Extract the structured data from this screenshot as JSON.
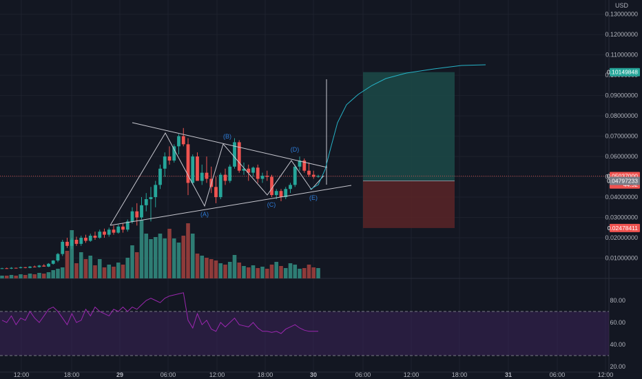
{
  "currency": "USD",
  "colors": {
    "background": "#131722",
    "up": "#26a69a",
    "down": "#ef5350",
    "vol_up": "#2e7d74",
    "vol_down": "#8e3b3a",
    "rsi_line": "#9c27b0",
    "rsi_band": "#3b2357",
    "target_zone": "#1c4a48",
    "stop_zone": "#5a2527",
    "projection": "#26b4c8",
    "pattern_lines": "#c9c9d1",
    "wave_labels": "#2e7bd6",
    "grid": "#1e222d"
  },
  "price_axis": {
    "ticks": [
      "0.13000000",
      "0.12000000",
      "0.11000000",
      "0.10000000",
      "0.09000000",
      "0.08000000",
      "0.07000000",
      "0.06000000",
      "0.05000000",
      "0.04000000",
      "0.03000000",
      "0.02000000",
      "0.01000000"
    ],
    "tags": [
      {
        "text": "0.10149848",
        "value": 0.10149848,
        "color": "#26a69a"
      },
      {
        "text": "0.05037000",
        "value": 0.05037,
        "color": "#ef5350"
      },
      {
        "text": "44:52",
        "value": 0.0462,
        "color": "#ef5350"
      },
      {
        "text": "0.04797233",
        "value": 0.04797233,
        "color": "#787b86"
      },
      {
        "text": "0.02478411",
        "value": 0.02478411,
        "color": "#ef5350"
      }
    ]
  },
  "rsi_axis": {
    "ticks": [
      "80.00",
      "60.00",
      "40.00",
      "20.00"
    ]
  },
  "time_axis": {
    "ticks": [
      "12:00",
      "18:00",
      "29",
      "06:00",
      "12:00",
      "18:00",
      "30",
      "06:00",
      "12:00",
      "18:00",
      "31",
      "06:00",
      "12:00"
    ]
  },
  "wave_labels": [
    "(A)",
    "(B)",
    "(C)",
    "(D)",
    "(E)"
  ],
  "chart_data": {
    "type": "candlestick",
    "unit": "USD",
    "ylim": [
      0.0,
      0.137
    ],
    "candles": [
      [
        0.0049,
        0.0052,
        0.0046,
        0.005
      ],
      [
        0.005,
        0.0053,
        0.0047,
        0.0048
      ],
      [
        0.0048,
        0.0055,
        0.0046,
        0.0052
      ],
      [
        0.0052,
        0.0053,
        0.0049,
        0.0051
      ],
      [
        0.0051,
        0.0058,
        0.0049,
        0.0055
      ],
      [
        0.0055,
        0.0056,
        0.005,
        0.0052
      ],
      [
        0.0052,
        0.006,
        0.005,
        0.0058
      ],
      [
        0.0058,
        0.0063,
        0.0054,
        0.0056
      ],
      [
        0.0056,
        0.0066,
        0.0053,
        0.0063
      ],
      [
        0.0063,
        0.007,
        0.006,
        0.0058
      ],
      [
        0.0058,
        0.0075,
        0.0056,
        0.0072
      ],
      [
        0.0072,
        0.009,
        0.0068,
        0.0088
      ],
      [
        0.0088,
        0.0125,
        0.008,
        0.012
      ],
      [
        0.012,
        0.019,
        0.011,
        0.018
      ],
      [
        0.018,
        0.02,
        0.015,
        0.016
      ],
      [
        0.016,
        0.02,
        0.0145,
        0.019
      ],
      [
        0.019,
        0.0205,
        0.016,
        0.017
      ],
      [
        0.017,
        0.021,
        0.016,
        0.02
      ],
      [
        0.02,
        0.0215,
        0.0175,
        0.0185
      ],
      [
        0.0185,
        0.022,
        0.018,
        0.021
      ],
      [
        0.021,
        0.023,
        0.019,
        0.02
      ],
      [
        0.02,
        0.024,
        0.0195,
        0.023
      ],
      [
        0.023,
        0.0245,
        0.02,
        0.0215
      ],
      [
        0.0215,
        0.025,
        0.0205,
        0.024
      ],
      [
        0.024,
        0.026,
        0.0215,
        0.0225
      ],
      [
        0.0225,
        0.0265,
        0.022,
        0.0255
      ],
      [
        0.0255,
        0.027,
        0.0225,
        0.024
      ],
      [
        0.024,
        0.029,
        0.023,
        0.028
      ],
      [
        0.028,
        0.035,
        0.027,
        0.033
      ],
      [
        0.033,
        0.037,
        0.026,
        0.03
      ],
      [
        0.03,
        0.04,
        0.029,
        0.036
      ],
      [
        0.036,
        0.042,
        0.033,
        0.039
      ],
      [
        0.039,
        0.045,
        0.028,
        0.04
      ],
      [
        0.04,
        0.048,
        0.035,
        0.046
      ],
      [
        0.046,
        0.056,
        0.044,
        0.054
      ],
      [
        0.054,
        0.062,
        0.05,
        0.06
      ],
      [
        0.06,
        0.065,
        0.056,
        0.058
      ],
      [
        0.058,
        0.066,
        0.057,
        0.065
      ],
      [
        0.065,
        0.071,
        0.061,
        0.07
      ],
      [
        0.07,
        0.074,
        0.065,
        0.066
      ],
      [
        0.066,
        0.069,
        0.041,
        0.047
      ],
      [
        0.047,
        0.061,
        0.046,
        0.06
      ],
      [
        0.06,
        0.062,
        0.048,
        0.048
      ],
      [
        0.048,
        0.056,
        0.046,
        0.052
      ],
      [
        0.052,
        0.06,
        0.047,
        0.049
      ],
      [
        0.049,
        0.055,
        0.042,
        0.045
      ],
      [
        0.045,
        0.05,
        0.037,
        0.04
      ],
      [
        0.04,
        0.052,
        0.039,
        0.051
      ],
      [
        0.051,
        0.054,
        0.046,
        0.048
      ],
      [
        0.048,
        0.056,
        0.047,
        0.055
      ],
      [
        0.055,
        0.069,
        0.054,
        0.067
      ],
      [
        0.067,
        0.068,
        0.052,
        0.053
      ],
      [
        0.053,
        0.057,
        0.051,
        0.054
      ],
      [
        0.054,
        0.056,
        0.048,
        0.052
      ],
      [
        0.052,
        0.055,
        0.05,
        0.0545
      ],
      [
        0.0545,
        0.056,
        0.047,
        0.049
      ],
      [
        0.049,
        0.052,
        0.047,
        0.0505
      ],
      [
        0.0505,
        0.053,
        0.048,
        0.05
      ],
      [
        0.05,
        0.051,
        0.04,
        0.041
      ],
      [
        0.041,
        0.044,
        0.039,
        0.043
      ],
      [
        0.043,
        0.044,
        0.038,
        0.04
      ],
      [
        0.04,
        0.045,
        0.039,
        0.044
      ],
      [
        0.044,
        0.047,
        0.042,
        0.046
      ],
      [
        0.046,
        0.056,
        0.045,
        0.055
      ],
      [
        0.055,
        0.06,
        0.053,
        0.058
      ],
      [
        0.058,
        0.059,
        0.052,
        0.053
      ],
      [
        0.053,
        0.057,
        0.05,
        0.051
      ],
      [
        0.051,
        0.053,
        0.049,
        0.05
      ],
      [
        0.05,
        0.051,
        0.0495,
        0.0504
      ]
    ],
    "volume_scale_max": 90,
    "volume": [
      4,
      4,
      5,
      4,
      6,
      5,
      7,
      6,
      8,
      7,
      9,
      12,
      14,
      16,
      40,
      70,
      22,
      38,
      28,
      33,
      19,
      28,
      16,
      20,
      17,
      23,
      20,
      30,
      48,
      38,
      85,
      65,
      57,
      60,
      65,
      58,
      72,
      58,
      52,
      62,
      80,
      65,
      36,
      33,
      30,
      28,
      26,
      22,
      20,
      24,
      34,
      23,
      18,
      16,
      19,
      15,
      17,
      14,
      20,
      24,
      18,
      15,
      22,
      20,
      14,
      15,
      20,
      16,
      15
    ],
    "rsi": [
      62,
      60,
      66,
      58,
      64,
      62,
      70,
      64,
      60,
      66,
      72,
      74,
      70,
      64,
      58,
      68,
      60,
      62,
      72,
      66,
      74,
      70,
      68,
      66,
      72,
      70,
      74,
      70,
      74,
      72,
      76,
      80,
      82,
      80,
      78,
      82,
      84,
      85,
      86,
      87,
      62,
      55,
      68,
      58,
      62,
      54,
      52,
      60,
      56,
      60,
      64,
      58,
      57,
      56,
      60,
      55,
      52,
      52,
      51,
      52,
      50,
      54,
      56,
      58,
      55,
      53,
      52,
      52,
      52
    ],
    "rsi_ylim": [
      15,
      100
    ],
    "rsi_levels": [
      70,
      30
    ],
    "long_position": {
      "entry": 0.04797233,
      "target": 0.10149848,
      "stop": 0.02478411,
      "current": 0.05037
    },
    "triangle": {
      "upper": [
        [
          9,
          0.074
        ],
        [
          50,
          0.057
        ]
      ],
      "lower": [
        [
          13,
          0.03
        ],
        [
          56,
          0.047
        ]
      ]
    },
    "wave_points": [
      [
        32,
        0.036
      ],
      [
        43,
        0.066
      ],
      [
        60,
        0.04
      ],
      [
        64,
        0.059
      ],
      [
        67,
        0.047
      ]
    ],
    "projection": [
      [
        67,
        0.047
      ],
      [
        70,
        0.056
      ],
      [
        71,
        0.07
      ],
      [
        72,
        0.082
      ],
      [
        73,
        0.087
      ],
      [
        75,
        0.09
      ],
      [
        78,
        0.094
      ],
      [
        82,
        0.098
      ],
      [
        88,
        0.1015
      ],
      [
        96,
        0.104
      ],
      [
        106,
        0.106
      ],
      [
        116,
        0.107
      ]
    ]
  }
}
